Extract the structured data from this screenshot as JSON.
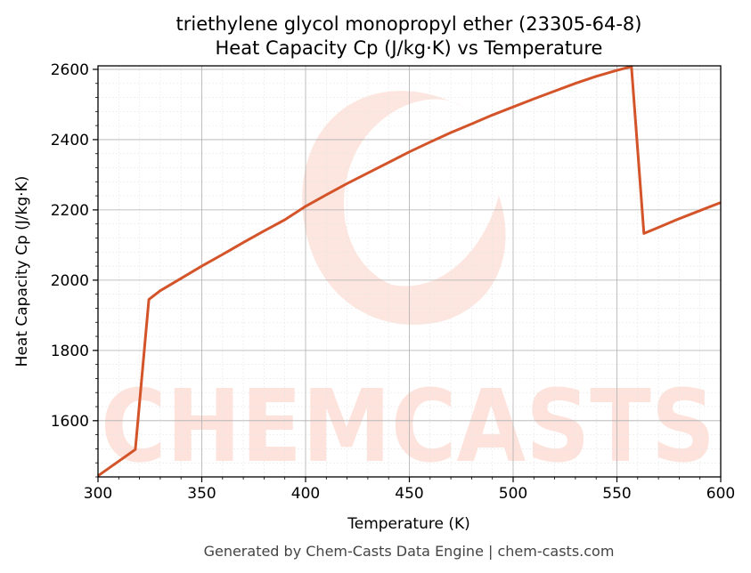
{
  "chart_data": {
    "type": "line",
    "title_line1": "triethylene glycol monopropyl ether (23305-64-8)",
    "title_line2": "Heat Capacity Cp (J/kg·K) vs Temperature",
    "xlabel": "Temperature (K)",
    "ylabel": "Heat Capacity Cp (J/kg·K)",
    "xlim": [
      300,
      600
    ],
    "ylim": [
      1440,
      2610
    ],
    "xticks": [
      300,
      350,
      400,
      450,
      500,
      550,
      600
    ],
    "yticks": [
      1600,
      1800,
      2000,
      2200,
      2400,
      2600
    ],
    "grid": true,
    "line_color": "#d4542a",
    "series": [
      {
        "x": [
          300,
          318,
          324.5,
          330,
          340,
          350,
          360,
          370,
          380,
          390,
          400,
          410,
          420,
          430,
          440,
          450,
          460,
          470,
          480,
          490,
          500,
          510,
          520,
          530,
          540,
          550,
          557,
          563,
          570,
          580,
          590,
          600
        ],
        "y": [
          1443,
          1518,
          1945,
          1970,
          2005,
          2040,
          2073,
          2107,
          2140,
          2172,
          2210,
          2243,
          2275,
          2305,
          2335,
          2365,
          2393,
          2420,
          2445,
          2470,
          2493,
          2516,
          2538,
          2560,
          2580,
          2597,
          2608,
          2133,
          2150,
          2175,
          2198,
          2221
        ]
      }
    ]
  },
  "watermark": {
    "text": "CHEMCASTS"
  },
  "footer": "Generated by Chem-Casts Data Engine | chem-casts.com"
}
